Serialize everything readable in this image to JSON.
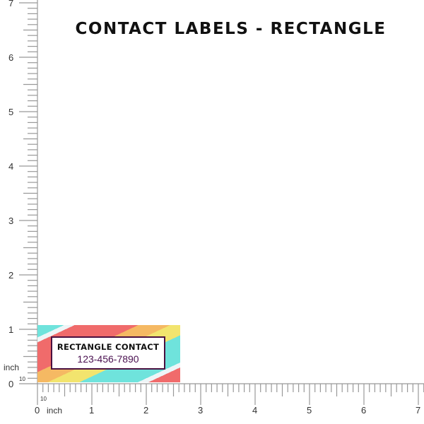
{
  "title": "CONTACT LABELS - RECTANGLE",
  "label": {
    "name": "RECTANGLE CONTACT",
    "phone": "123-456-7890",
    "colors": [
      "#6fe3dc",
      "#f06b6b",
      "#f5b963",
      "#f2e46e"
    ],
    "border_color": "#4a1040"
  },
  "ruler": {
    "unit": "inch",
    "subdivision": "10",
    "x_labels": [
      "0",
      "1",
      "2",
      "3",
      "4",
      "5",
      "6",
      "7"
    ],
    "y_labels": [
      "0",
      "1",
      "2",
      "3",
      "4",
      "5",
      "6",
      "7"
    ]
  }
}
